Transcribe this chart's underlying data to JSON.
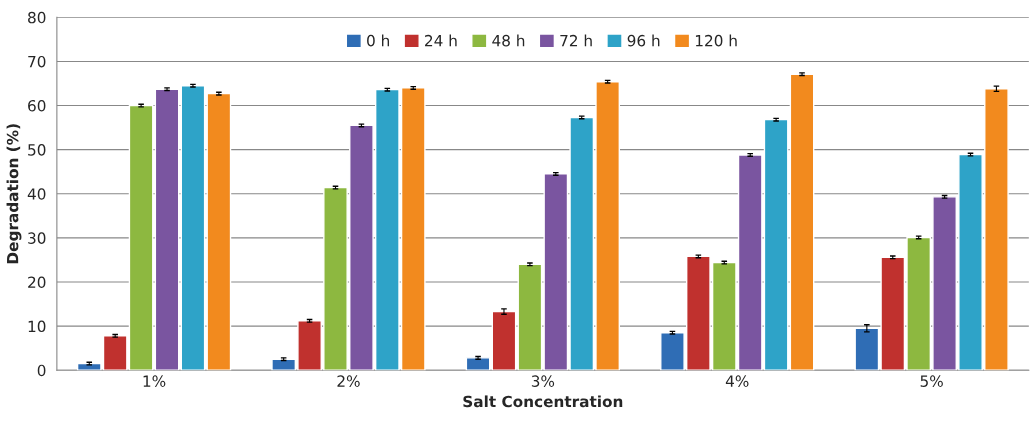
{
  "chart_data": {
    "type": "bar",
    "xlabel": "Salt Concentration",
    "ylabel": "Degradation (%)",
    "categories": [
      "1%",
      "2%",
      "3%",
      "4%",
      "5%"
    ],
    "series": [
      {
        "name": "0 h",
        "color": "#2f6db5",
        "values": [
          1.5,
          2.5,
          2.8,
          8.5,
          9.5
        ],
        "errors": [
          0.3,
          0.3,
          0.3,
          0.3,
          0.8
        ]
      },
      {
        "name": "24 h",
        "color": "#c0312e",
        "values": [
          7.8,
          11.2,
          13.3,
          25.8,
          25.6
        ],
        "errors": [
          0.3,
          0.3,
          0.6,
          0.3,
          0.3
        ]
      },
      {
        "name": "48 h",
        "color": "#8db840",
        "values": [
          60.0,
          41.4,
          24.0,
          24.4,
          30.1
        ],
        "errors": [
          0.3,
          0.3,
          0.3,
          0.3,
          0.3
        ]
      },
      {
        "name": "72 h",
        "color": "#7a55a0",
        "values": [
          63.7,
          55.5,
          44.5,
          48.8,
          39.3
        ],
        "errors": [
          0.3,
          0.3,
          0.3,
          0.3,
          0.3
        ]
      },
      {
        "name": "96 h",
        "color": "#2ea3c8",
        "values": [
          64.5,
          63.6,
          57.3,
          56.8,
          48.9
        ],
        "errors": [
          0.3,
          0.3,
          0.3,
          0.3,
          0.3
        ]
      },
      {
        "name": "120 h",
        "color": "#f28a1e",
        "values": [
          62.7,
          64.0,
          65.4,
          67.1,
          63.8
        ],
        "errors": [
          0.3,
          0.3,
          0.3,
          0.3,
          0.6
        ]
      }
    ],
    "ylim": [
      0,
      80
    ],
    "yticks": [
      0,
      10,
      20,
      30,
      40,
      50,
      60,
      70,
      80
    ],
    "grid": "y",
    "legend": "top"
  }
}
